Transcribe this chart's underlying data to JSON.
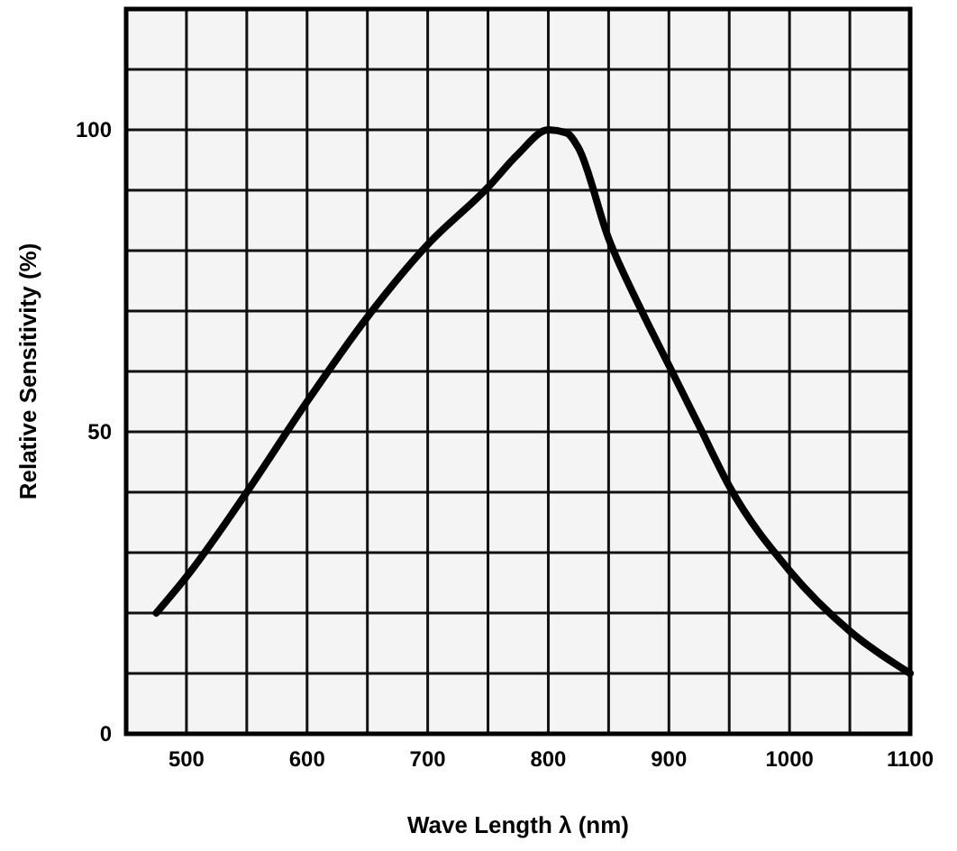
{
  "chart_data": {
    "type": "line",
    "xlabel": "Wave Length λ (nm)",
    "ylabel": "Relative Sensitivity (%)",
    "x": [
      475,
      500,
      550,
      600,
      650,
      700,
      750,
      775,
      800,
      815,
      825,
      850,
      875,
      900,
      925,
      950,
      1000,
      1050,
      1100
    ],
    "series": [
      {
        "color": "#000000",
        "values": [
          20,
          26,
          40,
          55,
          69,
          81,
          90.5,
          96,
          100,
          99.5,
          97,
          82,
          71,
          61,
          51,
          41,
          27,
          17,
          10
        ]
      }
    ],
    "xlim": [
      450,
      1100
    ],
    "xticks": [
      {
        "value": 450,
        "label": null
      },
      500,
      {
        "value": 550,
        "label": null
      },
      600,
      {
        "value": 650,
        "label": null
      },
      700,
      {
        "value": 750,
        "label": null
      },
      800,
      {
        "value": 850,
        "label": null
      },
      900,
      {
        "value": 950,
        "label": null
      },
      1000,
      {
        "value": 1050,
        "label": null
      },
      1100
    ],
    "ylim": [
      0,
      120
    ],
    "yticks": [
      0,
      {
        "value": 10,
        "label": null
      },
      {
        "value": 20,
        "label": null
      },
      {
        "value": 30,
        "label": null
      },
      {
        "value": 40,
        "label": null
      },
      50,
      {
        "value": 60,
        "label": null
      },
      {
        "value": 70,
        "label": null
      },
      {
        "value": 80,
        "label": null
      },
      {
        "value": 90,
        "label": null
      },
      100,
      {
        "value": 110,
        "label": null
      },
      {
        "value": 120,
        "label": null
      }
    ],
    "grid": true,
    "marker": "none",
    "line_style": "solid"
  }
}
